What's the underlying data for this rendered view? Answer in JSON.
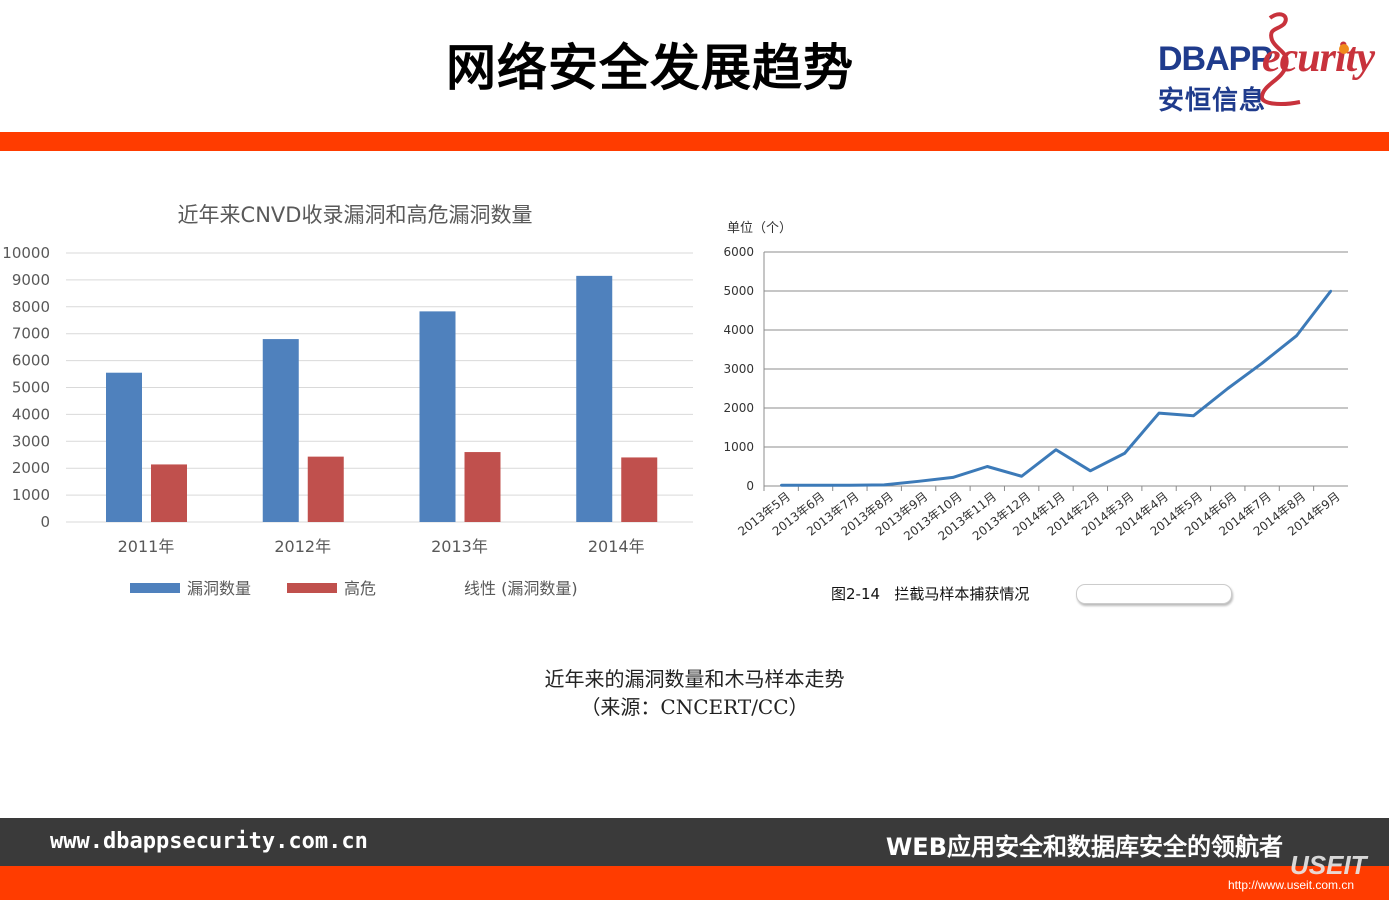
{
  "header": {
    "title": "网络安全发展趋势",
    "logo_brand": "DBAPP",
    "logo_security": "ecurity",
    "logo_cn": "安恒信息"
  },
  "chart_data": [
    {
      "type": "bar",
      "title": "近年来CNVD收录漏洞和高危漏洞数量",
      "categories": [
        "2011年",
        "2012年",
        "2013年",
        "2014年"
      ],
      "series": [
        {
          "name": "漏洞数量",
          "values": [
            5550,
            6800,
            7830,
            9150
          ],
          "color": "#4f81bd"
        },
        {
          "name": "高危",
          "values": [
            2140,
            2430,
            2600,
            2400
          ],
          "color": "#c0504d"
        }
      ],
      "legend_extra": "线性 (漏洞数量)",
      "yticks": [
        0,
        1000,
        2000,
        3000,
        4000,
        5000,
        6000,
        7000,
        8000,
        9000,
        10000
      ],
      "ylim": [
        0,
        10000
      ],
      "grid": true,
      "legend_position": "bottom"
    },
    {
      "type": "line",
      "unit_label": "单位（个）",
      "x": [
        "2013年5月",
        "2013年6月",
        "2013年7月",
        "2013年8月",
        "2013年9月",
        "2013年10月",
        "2013年11月",
        "2013年12月",
        "2014年1月",
        "2014年2月",
        "2014年3月",
        "2014年4月",
        "2014年5月",
        "2014年6月",
        "2014年7月",
        "2014年8月",
        "2014年9月"
      ],
      "series": [
        {
          "values": [
            20,
            20,
            20,
            30,
            120,
            220,
            500,
            250,
            930,
            390,
            840,
            1870,
            1800,
            2500,
            3150,
            3850,
            5000
          ],
          "color": "#3c7ab8"
        }
      ],
      "yticks": [
        0,
        1000,
        2000,
        3000,
        4000,
        5000,
        6000
      ],
      "ylim": [
        0,
        6000
      ],
      "grid": true,
      "caption": "图2-14   拦截马样本捕获情况"
    }
  ],
  "caption": {
    "line1": "近年来的漏洞数量和木马样本走势",
    "line2": "（来源：CNCERT/CC）"
  },
  "footer": {
    "url": "www.dbappsecurity.com.cn",
    "slogan": "WEB应用安全和数据库安全的领航者",
    "watermark": "USEIT",
    "watermark_url": "http://www.useit.com.cn"
  }
}
